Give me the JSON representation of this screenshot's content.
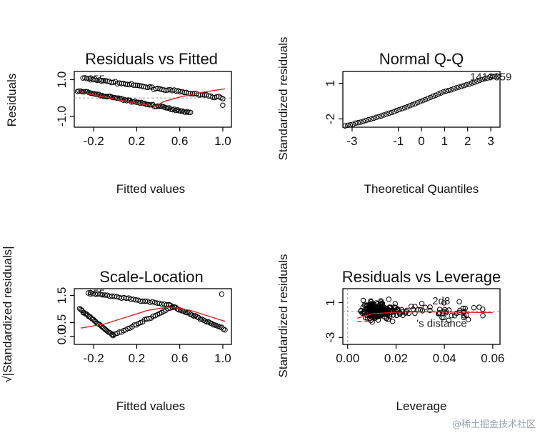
{
  "watermark": "@稀土掘金技术社区",
  "chart_data": [
    {
      "id": "rvf",
      "type": "scatter",
      "title": "Residuals vs Fitted",
      "xlabel": "Fitted values",
      "ylabel": "Residuals",
      "xlim": [
        -0.38,
        1.08
      ],
      "ylim": [
        -1.6,
        1.45
      ],
      "xticks": [
        -0.2,
        0.2,
        0.6,
        1.0
      ],
      "xtick_labels": [
        "-0.2",
        "0.2",
        "0.6",
        "1.0"
      ],
      "yticks": [
        -1.0,
        1.0
      ],
      "ytick_labels": [
        "-1.0",
        "1.0"
      ],
      "reference_line_y": 0,
      "outlier_label": "655",
      "bands": [
        {
          "name": "upper band",
          "x_start": -0.3,
          "x_end": 1.0,
          "y_start": 1.1,
          "y_end": 0.0,
          "n": 70
        },
        {
          "name": "lower band",
          "x_start": -0.35,
          "x_end": 0.7,
          "y_start": 0.4,
          "y_end": -0.8,
          "n": 70
        }
      ],
      "smooth": {
        "x": [
          -0.32,
          -0.1,
          0.2,
          0.38,
          0.45,
          0.6,
          0.8,
          1.02
        ],
        "y": [
          0.3,
          0.05,
          -0.3,
          -0.45,
          -0.2,
          0.05,
          0.3,
          0.5
        ]
      }
    },
    {
      "id": "qq",
      "type": "scatter",
      "title": "Normal Q-Q",
      "xlabel": "Theoretical Quantiles",
      "ylabel": "Standardized residuals",
      "xlim": [
        -3.4,
        3.4
      ],
      "ylim": [
        -2.7,
        2.0
      ],
      "xticks": [
        -3,
        -1,
        0,
        1,
        2,
        3
      ],
      "xtick_labels": [
        "-3",
        "-1",
        "0",
        "1",
        "2",
        "3"
      ],
      "yticks": [
        -2,
        1
      ],
      "ytick_labels": [
        "-2",
        "1"
      ],
      "outlier_label": "1419359",
      "curve": {
        "x": [
          -3.3,
          -2.5,
          -1.5,
          -0.5,
          0.0,
          0.5,
          1.0,
          2.0,
          2.6,
          3.0,
          3.3
        ],
        "y": [
          -2.6,
          -2.2,
          -1.6,
          -0.9,
          -0.5,
          -0.1,
          0.3,
          0.9,
          1.3,
          1.55,
          1.6
        ]
      },
      "n": 60
    },
    {
      "id": "sl",
      "type": "scatter",
      "title": "Scale-Location",
      "xlabel": "Fitted values",
      "ylabel": "√|Standardized residuals|",
      "xlim": [
        -0.38,
        1.08
      ],
      "ylim": [
        -0.3,
        1.75
      ],
      "xticks": [
        -0.2,
        0.2,
        0.6,
        1.0
      ],
      "xtick_labels": [
        "-0.2",
        "0.2",
        "0.6",
        "1.0"
      ],
      "yticks": [
        0.0,
        0.5,
        1.5
      ],
      "ytick_labels": [
        "0.0",
        "0.5",
        "1.5"
      ],
      "outlier_label": "655",
      "vbands": [
        {
          "x_start": -0.33,
          "x_end": -0.02,
          "y_start": 1.0,
          "y_end": 0.03,
          "n": 30
        },
        {
          "x_start": -0.02,
          "x_end": 0.55,
          "y_start": 0.03,
          "y_end": 1.1,
          "n": 30
        },
        {
          "x_start": -0.25,
          "x_end": 0.5,
          "y_start": 1.6,
          "y_end": 1.15,
          "n": 35
        },
        {
          "x_start": 0.5,
          "x_end": 1.02,
          "y_start": 1.15,
          "y_end": 0.25,
          "n": 35
        }
      ],
      "smooth": {
        "x": [
          -0.32,
          -0.1,
          0.1,
          0.3,
          0.5,
          0.7,
          0.9,
          1.02
        ],
        "y": [
          0.3,
          0.45,
          0.7,
          0.95,
          1.08,
          0.95,
          0.7,
          0.55
        ]
      }
    },
    {
      "id": "rvl",
      "type": "scatter",
      "title": "Residuals vs Leverage",
      "xlabel": "Leverage",
      "ylabel": "Standardized residuals",
      "xlim": [
        -0.002,
        0.063
      ],
      "ylim": [
        -3.8,
        2.6
      ],
      "xticks": [
        0.0,
        0.02,
        0.04,
        0.06
      ],
      "xtick_labels": [
        "0.00",
        "0.02",
        "0.04",
        "0.06"
      ],
      "yticks": [
        -3,
        1
      ],
      "ytick_labels": [
        "-3",
        "1"
      ],
      "outlier_label": "2d8",
      "annotation": "Cook's distance",
      "annotation_visible": "'s distance",
      "smooth": {
        "x": [
          0.004,
          0.01,
          0.02,
          0.03,
          0.045,
          0.06
        ],
        "y": [
          -0.8,
          -0.3,
          -0.1,
          -0.05,
          -0.1,
          -0.15
        ]
      },
      "n": 260
    }
  ]
}
